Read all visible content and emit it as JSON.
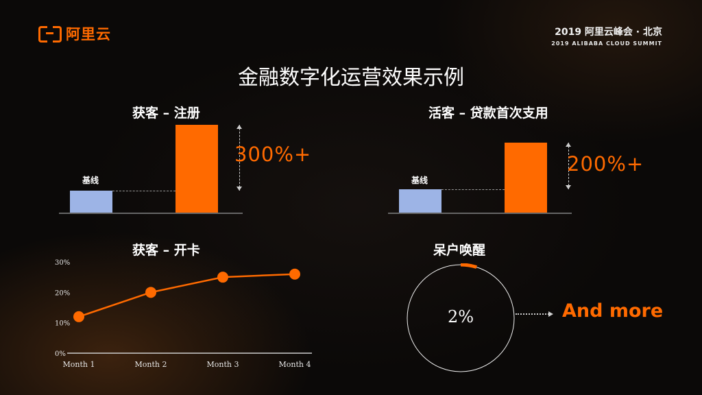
{
  "brand": {
    "logo_text": "阿里云",
    "accent": "#ff6a00"
  },
  "event": {
    "main": "2019 阿里云峰会 · 北京",
    "sub": "2019 ALIBABA CLOUD SUMMIT"
  },
  "page_title": "金融数字化运营效果示例",
  "chart_data": [
    {
      "type": "bar",
      "title": "获客 – 注册",
      "categories": [
        "基线",
        ""
      ],
      "values": [
        1,
        4
      ],
      "colors": [
        "#9db4e6",
        "#ff6a00"
      ],
      "annotation": "300%+"
    },
    {
      "type": "bar",
      "title": "活客 – 贷款首次支用",
      "categories": [
        "基线",
        ""
      ],
      "values": [
        1,
        3
      ],
      "colors": [
        "#9db4e6",
        "#ff6a00"
      ],
      "annotation": "200%+"
    },
    {
      "type": "line",
      "title": "获客 – 开卡",
      "categories": [
        "Month 1",
        "Month 2",
        "Month 3",
        "Month 4"
      ],
      "values": [
        12,
        20,
        25,
        26
      ],
      "ylim": [
        0,
        30
      ],
      "yticks": [
        "0%",
        "10%",
        "20%",
        "30%"
      ],
      "color": "#ff6a00"
    },
    {
      "type": "pie",
      "title": "呆户唤醒",
      "values": [
        2,
        98
      ],
      "center_label": "2%",
      "color": "#ff6a00"
    }
  ],
  "and_more": "And more"
}
